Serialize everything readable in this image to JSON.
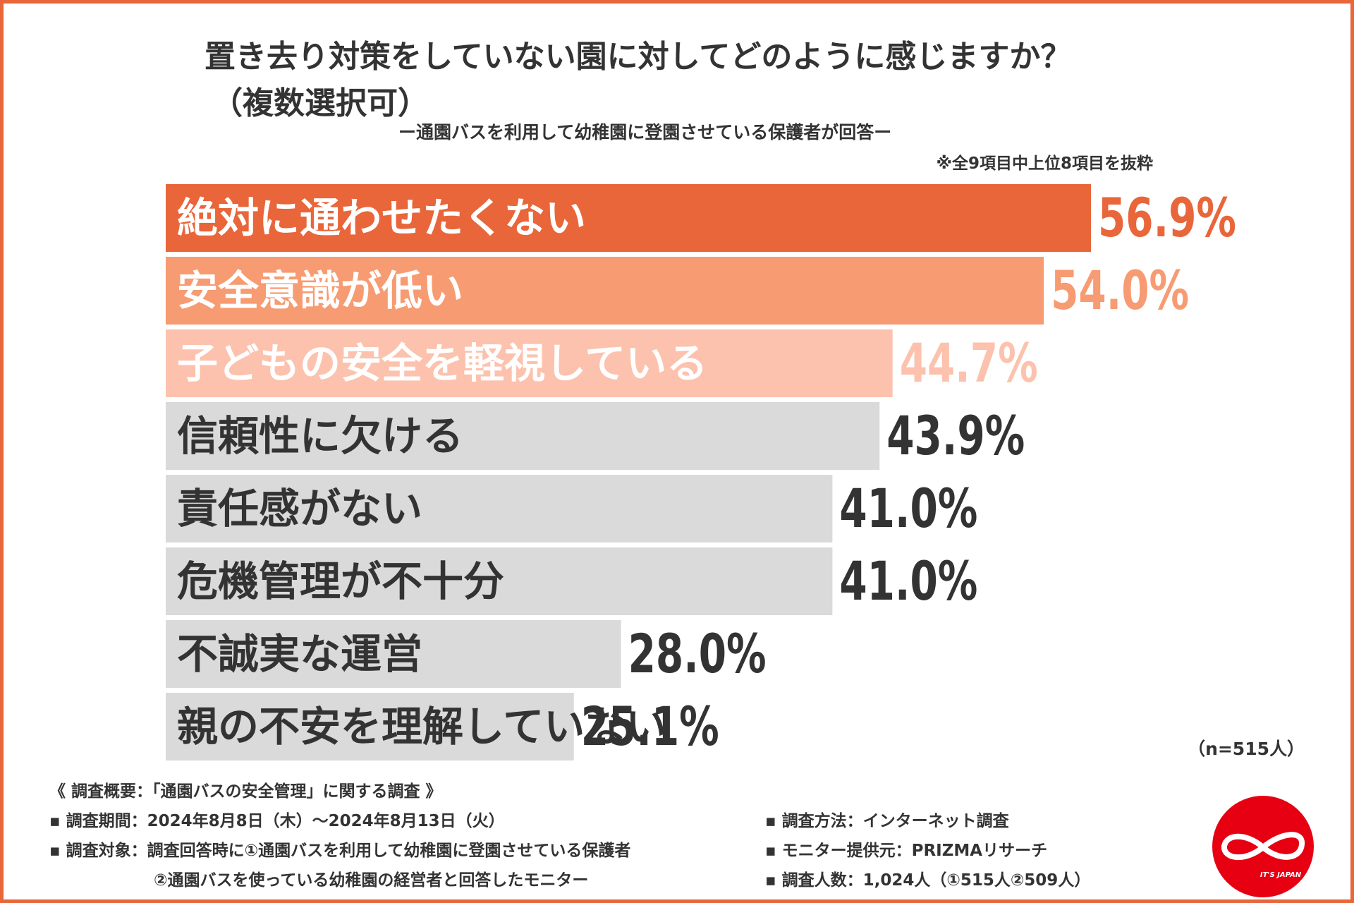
{
  "title": "置き去り対策をしていない園に対してどのように感じますか？",
  "title_sub": "（複数選択可）",
  "subtitle": "ー通園バスを利用して幼稚園に登園させている保護者が回答ー",
  "note": "※全9項目中上位8項目を抜粋",
  "chart_data": {
    "type": "bar",
    "orientation": "horizontal",
    "categories": [
      "絶対に通わせたくない",
      "安全意識が低い",
      "子どもの安全を軽視している",
      "信頼性に欠ける",
      "責任感がない",
      "危機管理が不十分",
      "不誠実な運営",
      "親の不安を理解していない"
    ],
    "values": [
      56.9,
      54.0,
      44.7,
      43.9,
      41.0,
      41.0,
      28.0,
      25.1
    ],
    "value_labels": [
      "56.9%",
      "54.0%",
      "44.7%",
      "43.9%",
      "41.0%",
      "41.0%",
      "28.0%",
      "25.1%"
    ],
    "bar_colors": [
      "#e8663a",
      "#f79b72",
      "#fcc2ad",
      "#dadada",
      "#dadada",
      "#dadada",
      "#dadada",
      "#dadada"
    ],
    "label_colors": [
      "#ffffff",
      "#ffffff",
      "#ffffff",
      "#333333",
      "#333333",
      "#333333",
      "#333333",
      "#333333"
    ],
    "value_colors": [
      "#e8663a",
      "#f79b72",
      "#fcc2ad",
      "#333333",
      "#333333",
      "#333333",
      "#333333",
      "#333333"
    ],
    "xlim": [
      0,
      56.9
    ],
    "grid": false,
    "legend": "none"
  },
  "n_label": "（n=515人）",
  "survey": {
    "heading": "《 調査概要：「通園バスの安全管理」に関する調査 》",
    "period": "▪ 調査期間：2024年8月8日（木）～2024年8月13日（火）",
    "target1": "▪ 調査対象：調査回答時に①通園バスを利用して幼稚園に登園させている保護者",
    "target2": "②通園バスを使っている幼稚園の経営者と回答したモニター",
    "method": "▪ 調査方法：インターネット調査",
    "provider": "▪ モニター提供元：PRIZMAリサーチ",
    "count": "▪ 調査人数：1,024人（①515人②509人）"
  },
  "logo": {
    "icon": "infinity-logo-icon",
    "text": "IT'S JAPAN",
    "color": "#e60012"
  },
  "colors": {
    "accent": "#e8663a",
    "text": "#333333"
  }
}
